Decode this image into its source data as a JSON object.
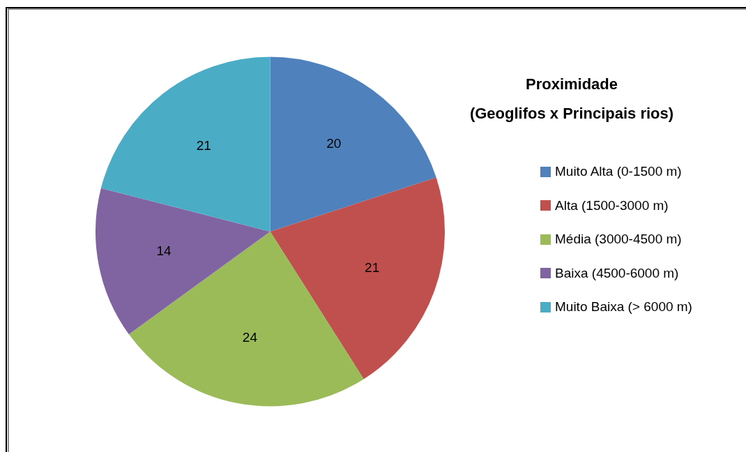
{
  "chart_data": {
    "type": "pie",
    "title": "Proximidade\n(Geoglifos x Principais rios)",
    "categories": [
      "Muito Alta (0-1500 m)",
      "Alta (1500-3000 m)",
      "Média (3000-4500 m)",
      "Baixa (4500-6000 m)",
      "Muito Baixa (> 6000 m)"
    ],
    "values": [
      20,
      21,
      24,
      14,
      21
    ],
    "colors": [
      "#4f81bd",
      "#c0504d",
      "#9bbb59",
      "#8064a2",
      "#4bacc6"
    ],
    "data_labels": true,
    "legend": "right"
  }
}
